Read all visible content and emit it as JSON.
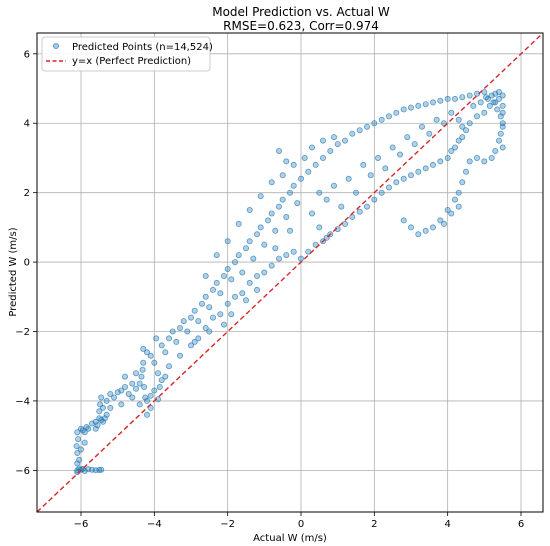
{
  "chart_data": {
    "type": "scatter",
    "title": "Model Prediction vs. Actual W",
    "subtitle": "RMSE=0.623, Corr=0.974",
    "xlabel": "Actual W (m/s)",
    "ylabel": "Predicted W (m/s)",
    "xlim": [
      -7.2,
      6.6
    ],
    "ylim": [
      -7.2,
      6.6
    ],
    "xticks": [
      -6,
      -4,
      -2,
      0,
      2,
      4,
      6
    ],
    "yticks": [
      -6,
      -4,
      -2,
      0,
      2,
      4,
      6
    ],
    "xtick_labels": [
      "−6",
      "−4",
      "−2",
      "0",
      "2",
      "4",
      "6"
    ],
    "ytick_labels": [
      "−6",
      "−4",
      "−2",
      "0",
      "2",
      "4",
      "6"
    ],
    "grid": true,
    "legend_position": "upper-left",
    "series": [
      {
        "name": "Predicted Points (n=14,524)",
        "kind": "points",
        "color": "#1f77b4",
        "alpha": 0.35,
        "points": [
          [
            -6.1,
            -6.0
          ],
          [
            -6.05,
            -5.95
          ],
          [
            -6.0,
            -5.98
          ],
          [
            -5.95,
            -5.96
          ],
          [
            -5.9,
            -6.02
          ],
          [
            -5.8,
            -5.97
          ],
          [
            -5.7,
            -5.98
          ],
          [
            -5.6,
            -6.0
          ],
          [
            -5.5,
            -5.99
          ],
          [
            -5.45,
            -5.98
          ],
          [
            -6.1,
            -5.5
          ],
          [
            -6.12,
            -5.3
          ],
          [
            -6.08,
            -5.1
          ],
          [
            -6.1,
            -4.9
          ],
          [
            -6.05,
            -5.7
          ],
          [
            -6.0,
            -4.8
          ],
          [
            -5.95,
            -4.85
          ],
          [
            -5.9,
            -4.9
          ],
          [
            -5.85,
            -4.75
          ],
          [
            -5.8,
            -4.8
          ],
          [
            -5.6,
            -4.6
          ],
          [
            -5.55,
            -4.7
          ],
          [
            -5.5,
            -4.5
          ],
          [
            -5.45,
            -4.55
          ],
          [
            -5.4,
            -4.6
          ],
          [
            -5.35,
            -4.5
          ],
          [
            -5.3,
            -4.4
          ],
          [
            -5.5,
            -4.3
          ],
          [
            -5.48,
            -4.1
          ],
          [
            -5.45,
            -3.9
          ],
          [
            -5.4,
            -4.2
          ],
          [
            -5.3,
            -4.0
          ],
          [
            -5.2,
            -3.8
          ],
          [
            -5.1,
            -3.9
          ],
          [
            -5.0,
            -3.75
          ],
          [
            -4.9,
            -3.7
          ],
          [
            -4.8,
            -3.6
          ],
          [
            -4.7,
            -3.8
          ],
          [
            -4.6,
            -3.9
          ],
          [
            -4.5,
            -3.65
          ],
          [
            -4.4,
            -3.5
          ],
          [
            -4.35,
            -3.3
          ],
          [
            -4.32,
            -3.1
          ],
          [
            -4.3,
            -2.9
          ],
          [
            -4.28,
            -3.6
          ],
          [
            -4.25,
            -3.9
          ],
          [
            -4.2,
            -4.0
          ],
          [
            -4.1,
            -3.85
          ],
          [
            -4.0,
            -3.7
          ],
          [
            -3.9,
            -3.95
          ],
          [
            -3.85,
            -3.6
          ],
          [
            -3.8,
            -3.4
          ],
          [
            -3.9,
            -3.2
          ],
          [
            -4.0,
            -2.9
          ],
          [
            -4.1,
            -2.7
          ],
          [
            -4.2,
            -2.6
          ],
          [
            -4.3,
            -2.5
          ],
          [
            -4.1,
            -4.2
          ],
          [
            -4.2,
            -4.4
          ],
          [
            -4.4,
            -4.1
          ],
          [
            -3.95,
            -2.2
          ],
          [
            -3.8,
            -2.4
          ],
          [
            -3.7,
            -2.6
          ],
          [
            -3.6,
            -2.2
          ],
          [
            -3.5,
            -2.0
          ],
          [
            -3.4,
            -2.3
          ],
          [
            -3.3,
            -1.9
          ],
          [
            -3.2,
            -1.7
          ],
          [
            -3.1,
            -2.0
          ],
          [
            -3.0,
            -1.6
          ],
          [
            -2.9,
            -1.4
          ],
          [
            -2.8,
            -1.7
          ],
          [
            -2.7,
            -1.2
          ],
          [
            -2.6,
            -1.0
          ],
          [
            -2.5,
            -1.3
          ],
          [
            -2.4,
            -0.8
          ],
          [
            -2.3,
            -0.6
          ],
          [
            -2.2,
            -0.9
          ],
          [
            -2.1,
            -0.4
          ],
          [
            -2.0,
            -0.2
          ],
          [
            -1.9,
            -0.5
          ],
          [
            -1.8,
            0.0
          ],
          [
            -1.7,
            0.2
          ],
          [
            -1.6,
            -0.3
          ],
          [
            -1.5,
            0.4
          ],
          [
            -1.4,
            0.6
          ],
          [
            -1.3,
            0.1
          ],
          [
            -1.2,
            0.8
          ],
          [
            -1.1,
            1.0
          ],
          [
            -1.0,
            0.5
          ],
          [
            -0.9,
            1.2
          ],
          [
            -0.8,
            1.4
          ],
          [
            -0.7,
            0.9
          ],
          [
            -0.6,
            1.6
          ],
          [
            -0.5,
            1.8
          ],
          [
            -0.4,
            1.3
          ],
          [
            -0.3,
            2.0
          ],
          [
            -0.2,
            2.2
          ],
          [
            -0.1,
            1.7
          ],
          [
            0.0,
            2.4
          ],
          [
            -3.0,
            -2.4
          ],
          [
            -2.8,
            -2.2
          ],
          [
            -2.6,
            -1.9
          ],
          [
            -2.4,
            -1.6
          ],
          [
            -2.2,
            -1.5
          ],
          [
            -2.0,
            -1.2
          ],
          [
            -1.8,
            -1.0
          ],
          [
            -1.6,
            -0.9
          ],
          [
            -1.4,
            -0.6
          ],
          [
            -1.2,
            -0.4
          ],
          [
            -1.0,
            -0.3
          ],
          [
            -0.8,
            -0.1
          ],
          [
            -0.6,
            0.1
          ],
          [
            -0.4,
            0.2
          ],
          [
            -0.2,
            0.3
          ],
          [
            0.0,
            0.1
          ],
          [
            0.2,
            0.3
          ],
          [
            0.4,
            0.5
          ],
          [
            0.6,
            0.6
          ],
          [
            0.8,
            0.8
          ],
          [
            1.0,
            0.95
          ],
          [
            1.2,
            1.1
          ],
          [
            1.4,
            1.3
          ],
          [
            1.6,
            1.45
          ],
          [
            1.8,
            1.6
          ],
          [
            2.0,
            1.8
          ],
          [
            2.2,
            2.0
          ],
          [
            2.4,
            2.15
          ],
          [
            2.6,
            2.3
          ],
          [
            2.8,
            2.4
          ],
          [
            3.0,
            2.5
          ],
          [
            3.2,
            2.6
          ],
          [
            3.4,
            2.7
          ],
          [
            3.6,
            2.8
          ],
          [
            3.8,
            2.9
          ],
          [
            4.0,
            3.0
          ],
          [
            4.1,
            3.2
          ],
          [
            4.2,
            3.3
          ],
          [
            4.3,
            3.5
          ],
          [
            4.4,
            3.6
          ],
          [
            0.2,
            2.6
          ],
          [
            0.4,
            2.8
          ],
          [
            0.6,
            3.0
          ],
          [
            0.8,
            3.2
          ],
          [
            1.0,
            3.4
          ],
          [
            1.2,
            3.5
          ],
          [
            1.4,
            3.7
          ],
          [
            1.6,
            3.8
          ],
          [
            1.8,
            3.9
          ],
          [
            2.0,
            4.0
          ],
          [
            2.2,
            4.1
          ],
          [
            2.4,
            4.2
          ],
          [
            2.6,
            4.3
          ],
          [
            2.8,
            4.4
          ],
          [
            3.0,
            4.45
          ],
          [
            3.2,
            4.5
          ],
          [
            3.4,
            4.55
          ],
          [
            3.6,
            4.6
          ],
          [
            3.8,
            4.65
          ],
          [
            4.0,
            4.7
          ],
          [
            4.2,
            4.7
          ],
          [
            4.4,
            4.75
          ],
          [
            4.6,
            4.8
          ],
          [
            4.8,
            4.85
          ],
          [
            5.0,
            4.9
          ],
          [
            5.2,
            4.8
          ],
          [
            5.4,
            4.7
          ],
          [
            5.5,
            4.5
          ],
          [
            5.45,
            4.2
          ],
          [
            5.5,
            3.9
          ],
          [
            5.4,
            3.5
          ],
          [
            5.3,
            3.2
          ],
          [
            5.2,
            3.0
          ],
          [
            5.0,
            2.9
          ],
          [
            4.8,
            3.0
          ],
          [
            4.6,
            2.9
          ],
          [
            4.5,
            2.6
          ],
          [
            4.4,
            2.3
          ],
          [
            4.3,
            2.0
          ],
          [
            4.2,
            1.8
          ],
          [
            4.0,
            1.5
          ],
          [
            3.8,
            1.2
          ],
          [
            3.6,
            1.0
          ],
          [
            3.4,
            0.9
          ],
          [
            3.2,
            0.8
          ],
          [
            3.0,
            1.0
          ],
          [
            2.8,
            1.2
          ],
          [
            3.9,
            1.1
          ],
          [
            4.1,
            1.4
          ],
          [
            4.3,
            1.6
          ],
          [
            0.5,
            2.0
          ],
          [
            0.7,
            1.8
          ],
          [
            0.9,
            2.2
          ],
          [
            1.1,
            1.6
          ],
          [
            1.3,
            2.4
          ],
          [
            1.5,
            2.0
          ],
          [
            1.7,
            2.8
          ],
          [
            1.9,
            2.5
          ],
          [
            2.1,
            3.0
          ],
          [
            2.3,
            2.7
          ],
          [
            2.5,
            3.3
          ],
          [
            2.7,
            3.1
          ],
          [
            2.9,
            3.6
          ],
          [
            3.1,
            3.4
          ],
          [
            3.3,
            3.9
          ],
          [
            3.5,
            3.7
          ],
          [
            3.7,
            4.1
          ],
          [
            3.9,
            4.0
          ],
          [
            4.1,
            4.3
          ],
          [
            4.3,
            4.1
          ],
          [
            -2.6,
            -0.4
          ],
          [
            -2.3,
            0.2
          ],
          [
            -2.0,
            0.6
          ],
          [
            -1.7,
            1.1
          ],
          [
            -1.4,
            1.5
          ],
          [
            -1.1,
            1.9
          ],
          [
            -0.8,
            2.3
          ],
          [
            -0.5,
            2.5
          ],
          [
            -0.2,
            2.8
          ],
          [
            0.1,
            3.0
          ],
          [
            0.3,
            3.3
          ],
          [
            0.6,
            3.5
          ],
          [
            0.9,
            3.6
          ],
          [
            -0.6,
            3.2
          ],
          [
            -0.4,
            2.9
          ],
          [
            0.3,
            1.4
          ],
          [
            0.5,
            1.0
          ],
          [
            0.7,
            0.7
          ],
          [
            -0.3,
            0.9
          ],
          [
            -0.7,
            0.4
          ],
          [
            -1.2,
            -0.8
          ],
          [
            -1.5,
            -1.1
          ],
          [
            -1.9,
            -1.5
          ],
          [
            -2.1,
            -1.8
          ],
          [
            -2.5,
            -2.0
          ],
          [
            -2.9,
            -2.3
          ],
          [
            -3.3,
            -2.7
          ],
          [
            -3.6,
            -3.0
          ],
          [
            -3.7,
            -3.3
          ],
          [
            -4.5,
            -3.2
          ],
          [
            -4.6,
            -3.5
          ],
          [
            -4.8,
            -3.3
          ],
          [
            -4.9,
            -4.1
          ],
          [
            -5.2,
            -4.2
          ],
          [
            -5.6,
            -4.8
          ],
          [
            -5.7,
            -4.65
          ],
          [
            -5.9,
            -5.2
          ],
          [
            -6.0,
            -5.4
          ],
          [
            -6.1,
            -5.8
          ],
          [
            -6.1,
            -6.05
          ],
          [
            4.7,
            4.5
          ],
          [
            4.9,
            4.6
          ],
          [
            5.1,
            4.7
          ],
          [
            5.3,
            4.6
          ],
          [
            5.5,
            4.3
          ],
          [
            5.0,
            4.3
          ],
          [
            4.8,
            4.2
          ],
          [
            4.6,
            4.0
          ],
          [
            4.5,
            3.8
          ],
          [
            4.4,
            3.9
          ],
          [
            5.5,
            4.8
          ],
          [
            5.4,
            4.9
          ],
          [
            5.3,
            4.85
          ],
          [
            5.5,
            4.0
          ],
          [
            5.45,
            3.7
          ],
          [
            5.5,
            3.3
          ],
          [
            5.35,
            4.4
          ],
          [
            5.25,
            4.6
          ],
          [
            5.15,
            4.5
          ],
          [
            5.05,
            4.75
          ]
        ]
      },
      {
        "name": "y=x (Perfect Prediction)",
        "kind": "line",
        "color": "#d62728",
        "dash": "dashed",
        "x": [
          -7.2,
          6.6
        ],
        "y": [
          -7.2,
          6.6
        ]
      }
    ]
  }
}
